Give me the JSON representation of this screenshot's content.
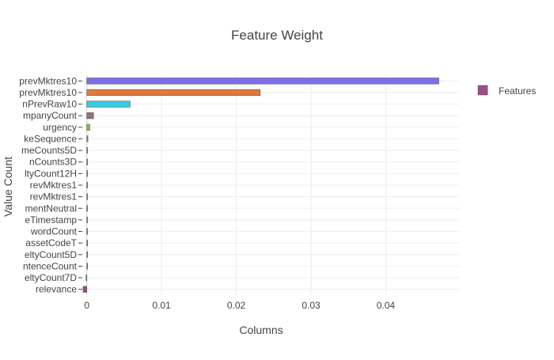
{
  "chart_data": {
    "type": "bar",
    "orientation": "horizontal",
    "title": "Feature Weight",
    "xlabel": "Columns",
    "ylabel": "Value Count",
    "xlim": [
      -0.0006,
      0.0498
    ],
    "xticks": [
      0,
      0.01,
      0.02,
      0.03,
      0.04
    ],
    "xtick_labels": [
      "0",
      "0.01",
      "0.02",
      "0.03",
      "0.04"
    ],
    "grid": true,
    "legend": {
      "placement": "top-right",
      "entries": [
        {
          "name": "Features",
          "color": "#9C4F86"
        }
      ]
    },
    "series": [
      {
        "name": "Features",
        "categories": [
          "prevMktres10",
          "prevMktres10",
          "nPrevRaw10",
          "mpanyCount",
          "urgency",
          "keSequence",
          "meCounts5D",
          "nCounts3D",
          "ltyCount12H",
          "revMktres1",
          "revMktres1",
          "mentNeutral",
          "eTimestamp",
          "wordCount",
          "assetCodeT",
          "eltyCount5D",
          "ntenceCount",
          "eltyCount7D",
          "relevance"
        ],
        "values": [
          0.0471,
          0.0232,
          0.0058,
          0.0009,
          0.0004,
          0.00015,
          0.0001,
          8e-05,
          6e-05,
          5e-05,
          4e-05,
          3e-05,
          3e-05,
          2e-05,
          2e-05,
          1e-05,
          1e-05,
          -0.0001,
          -0.0005
        ],
        "colors": [
          "#7B6FEA",
          "#E07A3C",
          "#36CCE2",
          "#9A7070",
          "#7CC443",
          "#C86A9D",
          "#9A8C7A",
          "#5BAE8C",
          "#AA7CD0",
          "#6E8FCB",
          "#D28B55",
          "#6DA86D",
          "#C9A04E",
          "#7B9E9E",
          "#B4708E",
          "#6E9A3C",
          "#5A8CC9",
          "#3BA887",
          "#9C4F86"
        ]
      }
    ]
  }
}
